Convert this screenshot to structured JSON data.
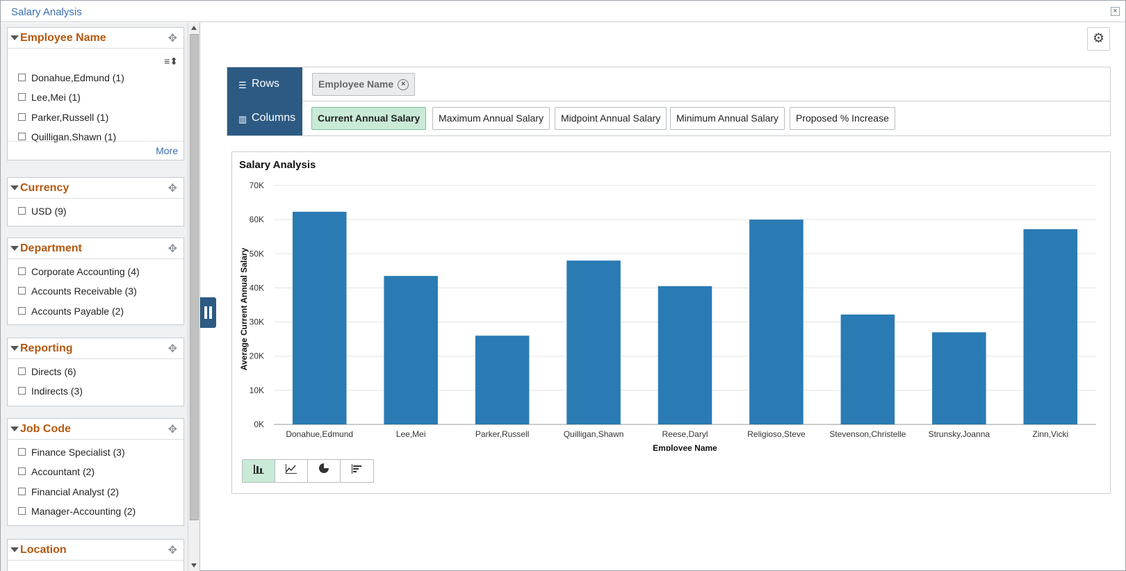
{
  "window": {
    "title": "Salary Analysis",
    "close_label": "×"
  },
  "facets": [
    {
      "name": "Employee Name",
      "options": [
        "Donahue,Edmund (1)",
        "Lee,Mei (1)",
        "Parker,Russell (1)",
        "Quilligan,Shawn (1)"
      ],
      "more_label": "More"
    },
    {
      "name": "Currency",
      "options": [
        "USD (9)"
      ]
    },
    {
      "name": "Department",
      "options": [
        "Corporate Accounting (4)",
        "Accounts Receivable (3)",
        "Accounts Payable (2)"
      ]
    },
    {
      "name": "Reporting",
      "options": [
        "Directs (6)",
        "Indirects (3)"
      ]
    },
    {
      "name": "Job Code",
      "options": [
        "Finance Specialist (3)",
        "Accountant (2)",
        "Financial Analyst (2)",
        "Manager-Accounting (2)"
      ]
    },
    {
      "name": "Location",
      "options": []
    }
  ],
  "pivot": {
    "rows_label": "Rows",
    "columns_label": "Columns",
    "row_fields": [
      "Employee Name"
    ],
    "column_fields": [
      "Current Annual Salary",
      "Maximum Annual Salary",
      "Midpoint Annual Salary",
      "Minimum Annual Salary",
      "Proposed % Increase"
    ],
    "active_column": "Current Annual Salary"
  },
  "chart_data": {
    "type": "bar",
    "title": "Salary Analysis",
    "xlabel": "Employee Name",
    "ylabel": "Average Current Annual Salary",
    "categories": [
      "Donahue,Edmund",
      "Lee,Mei",
      "Parker,Russell",
      "Quilligan,Shawn",
      "Reese,Daryl",
      "Religioso,Steve",
      "Stevenson,Christelle",
      "Strunsky,Joanna",
      "Zinn,Vicki"
    ],
    "values": [
      62300,
      43500,
      26000,
      48000,
      40500,
      60000,
      32200,
      27000,
      57200
    ],
    "ylim": [
      0,
      70000
    ],
    "yticks": [
      "0K",
      "10K",
      "20K",
      "30K",
      "40K",
      "50K",
      "60K",
      "70K"
    ],
    "bar_color": "#2a7bb4",
    "grid": true
  },
  "chart_tools": [
    "bar-chart-icon",
    "line-chart-icon",
    "pie-chart-icon",
    "horizontal-bar-icon"
  ]
}
